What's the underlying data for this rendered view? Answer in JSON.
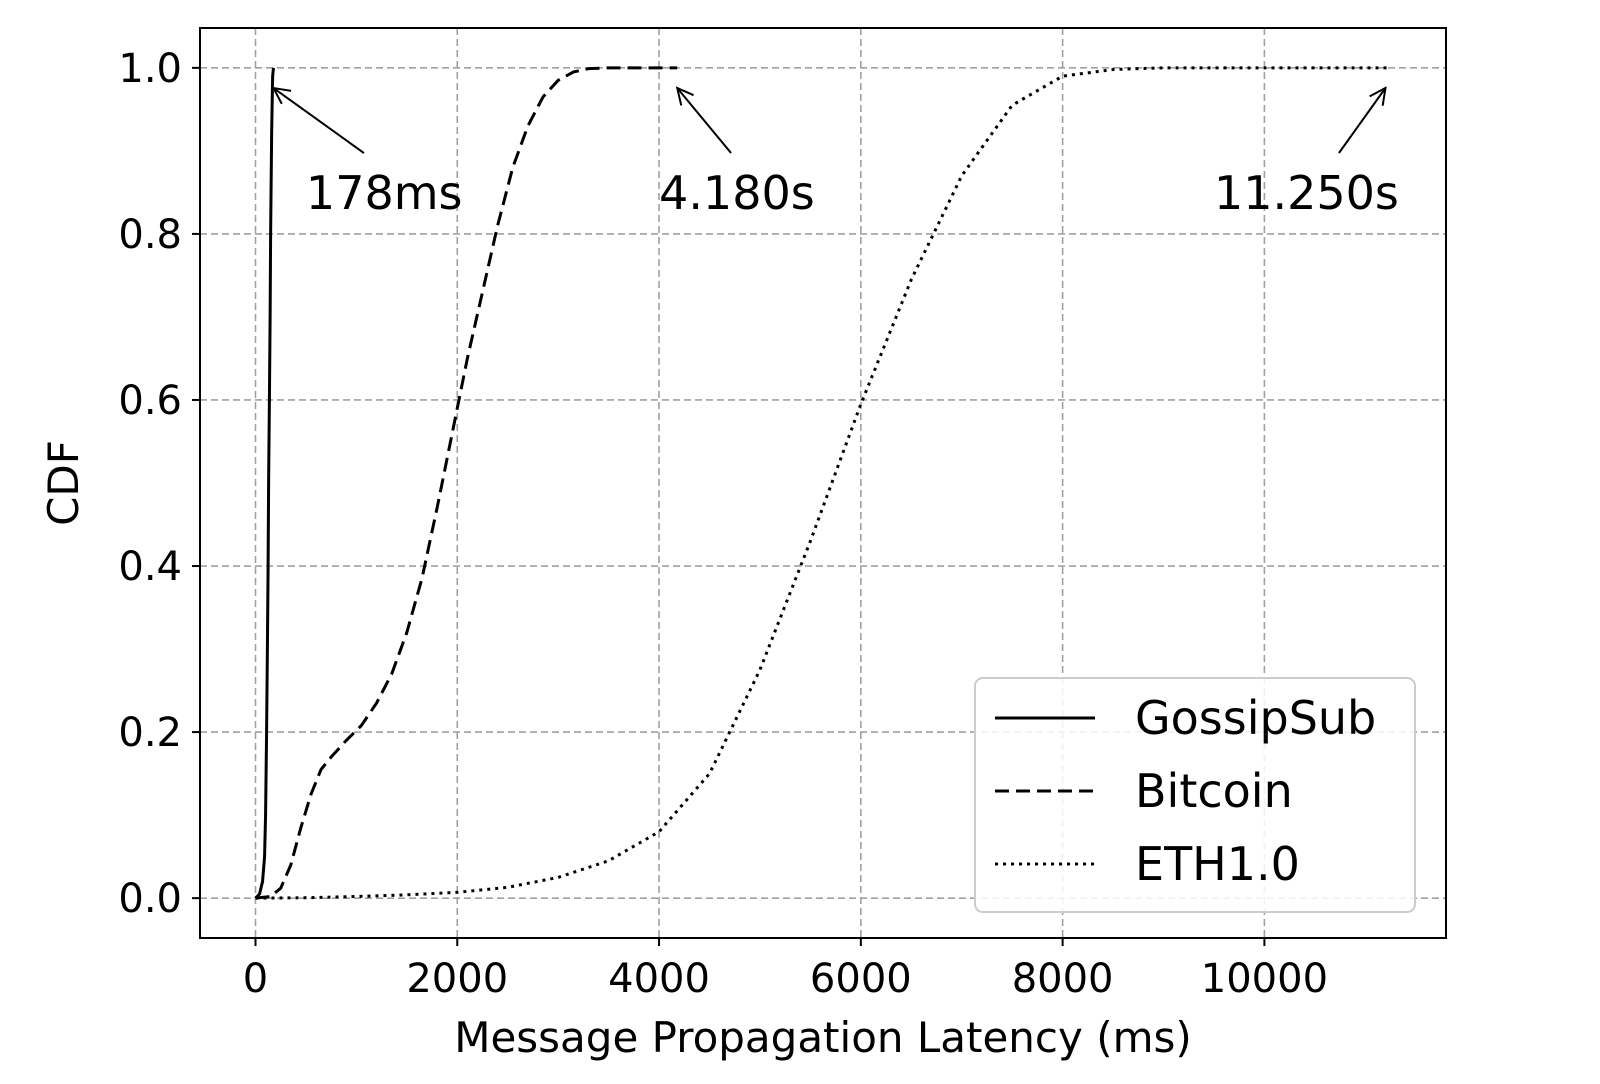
{
  "chart_data": {
    "type": "line",
    "title": "",
    "xlabel": "Message Propagation Latency (ms)",
    "ylabel": "CDF",
    "xlim": [
      -550,
      11800
    ],
    "ylim": [
      -0.048,
      1.048
    ],
    "xticks": [
      0,
      2000,
      4000,
      6000,
      8000,
      10000
    ],
    "xtick_labels": [
      "0",
      "2000",
      "4000",
      "6000",
      "8000",
      "10000"
    ],
    "yticks": [
      0.0,
      0.2,
      0.4,
      0.6,
      0.8,
      1.0
    ],
    "ytick_labels": [
      "0.0",
      "0.2",
      "0.4",
      "0.6",
      "0.8",
      "1.0"
    ],
    "grid": true,
    "legend_position": "lower-right",
    "series": [
      {
        "name": "GossipSub",
        "line_style": "solid",
        "x": [
          0,
          40,
          70,
          90,
          100,
          110,
          118,
          125,
          130,
          138,
          145,
          150,
          160,
          170,
          178
        ],
        "y": [
          0.0,
          0.005,
          0.02,
          0.05,
          0.1,
          0.2,
          0.3,
          0.4,
          0.5,
          0.6,
          0.7,
          0.8,
          0.92,
          0.99,
          1.0
        ]
      },
      {
        "name": "Bitcoin",
        "line_style": "dashed",
        "x": [
          0,
          150,
          250,
          350,
          450,
          550,
          650,
          750,
          900,
          1050,
          1200,
          1350,
          1500,
          1650,
          1800,
          1950,
          2100,
          2250,
          2400,
          2550,
          2700,
          2850,
          3000,
          3150,
          3300,
          3500,
          3800,
          4180
        ],
        "y": [
          0.0,
          0.002,
          0.012,
          0.04,
          0.085,
          0.125,
          0.155,
          0.17,
          0.19,
          0.208,
          0.235,
          0.27,
          0.32,
          0.385,
          0.47,
          0.56,
          0.65,
          0.73,
          0.81,
          0.88,
          0.93,
          0.965,
          0.985,
          0.995,
          0.999,
          1.0,
          1.0,
          1.0
        ],
        "end_label": "4.180s"
      },
      {
        "name": "ETH1.0",
        "line_style": "dotted",
        "x": [
          0,
          500,
          1000,
          1500,
          2000,
          2500,
          3000,
          3500,
          4000,
          4500,
          5000,
          5500,
          6000,
          6500,
          7000,
          7500,
          8000,
          8500,
          9000,
          10000,
          11250
        ],
        "y": [
          0.0,
          0.0005,
          0.002,
          0.004,
          0.007,
          0.013,
          0.025,
          0.045,
          0.08,
          0.15,
          0.275,
          0.43,
          0.595,
          0.745,
          0.87,
          0.955,
          0.99,
          0.998,
          1.0,
          1.0,
          1.0
        ],
        "end_label": "11.250s"
      }
    ],
    "annotations": [
      {
        "text": "178ms",
        "arrow_to": [
          178,
          0.995
        ],
        "text_at": [
          500,
          0.83
        ]
      },
      {
        "text": "4.180s",
        "arrow_to": [
          4180,
          0.995
        ],
        "text_at": [
          4000,
          0.83
        ]
      },
      {
        "text": "11.250s",
        "arrow_to": [
          11200,
          0.995
        ],
        "text_at": [
          9500,
          0.83
        ]
      }
    ],
    "colors": {
      "lines": "#000000",
      "grid": "#a0a0a0",
      "legend_border": "#cccccc"
    }
  }
}
